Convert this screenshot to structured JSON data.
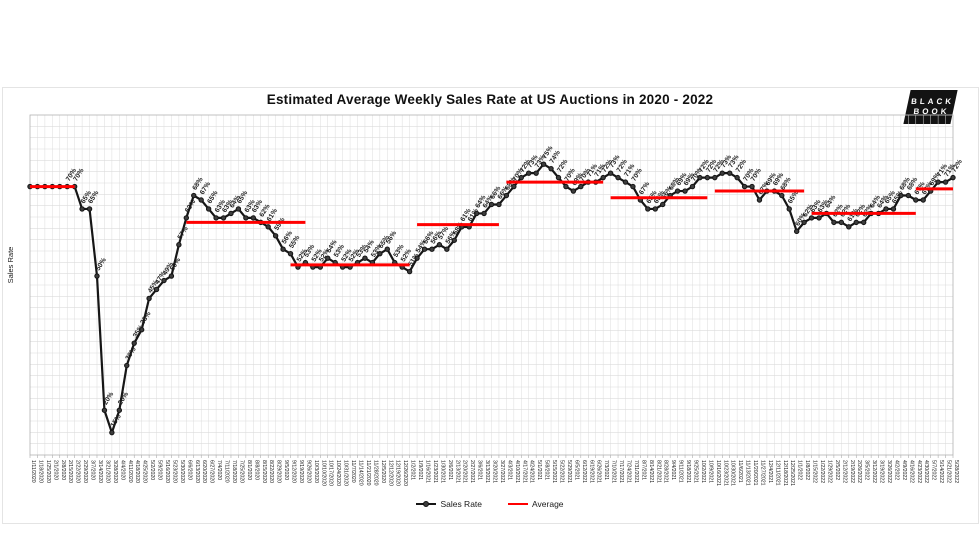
{
  "title": "Estimated Average Weekly Sales Rate at US Auctions in 2020 - 2022",
  "logo": {
    "line1": "BLACK",
    "line2": "BOOK"
  },
  "colors": {
    "series": "#161616",
    "marker_fill": "#3c3c3c",
    "average": "#ff0000",
    "grid": "#dcdcdc",
    "axis": "#b5b5b5"
  },
  "chart_data": {
    "type": "line",
    "title": "Estimated Average Weekly Sales Rate at US Auctions in 2020 - 2022",
    "xlabel": "",
    "ylabel": "Sales Rate",
    "ylim": [
      10,
      86
    ],
    "grid": true,
    "legend_position": "bottom",
    "data_label_format": "percent",
    "label_skip_indices": [
      0,
      1,
      2,
      3,
      4
    ],
    "x": [
      "1/11/2020",
      "1/18/2020",
      "1/25/2020",
      "2/1/2020",
      "2/8/2020",
      "2/15/2020",
      "2/22/2020",
      "2/29/2020",
      "3/7/2020",
      "3/14/2020",
      "3/21/2020",
      "3/28/2020",
      "4/4/2020",
      "4/11/2020",
      "4/18/2020",
      "4/25/2020",
      "5/2/2020",
      "5/9/2020",
      "5/16/2020",
      "5/23/2020",
      "5/30/2020",
      "6/6/2020",
      "6/13/2020",
      "6/20/2020",
      "6/27/2020",
      "7/4/2020",
      "7/11/2020",
      "7/18/2020",
      "7/25/2020",
      "8/1/2020",
      "8/8/2020",
      "8/15/2020",
      "8/22/2020",
      "8/29/2020",
      "9/5/2020",
      "9/12/2020",
      "9/19/2020",
      "9/26/2020",
      "10/3/2020",
      "10/10/2020",
      "10/17/2020",
      "10/24/2020",
      "10/31/2020",
      "11/7/2020",
      "11/14/2020",
      "11/21/2020",
      "11/28/2020",
      "12/5/2020",
      "12/12/2020",
      "12/19/2020",
      "12/26/2020",
      "1/2/2021",
      "1/9/2021",
      "1/16/2021",
      "1/23/2021",
      "1/30/2021",
      "2/6/2021",
      "2/13/2021",
      "2/20/2021",
      "2/27/2021",
      "3/6/2021",
      "3/13/2021",
      "3/20/2021",
      "3/27/2021",
      "4/3/2021",
      "4/10/2021",
      "4/17/2021",
      "4/24/2021",
      "5/1/2021",
      "5/8/2021",
      "5/15/2021",
      "5/22/2021",
      "5/29/2021",
      "6/5/2021",
      "6/12/2021",
      "6/19/2021",
      "6/26/2021",
      "7/3/2021",
      "7/10/2021",
      "7/17/2021",
      "7/24/2021",
      "7/31/2021",
      "8/7/2021",
      "8/14/2021",
      "8/21/2021",
      "8/28/2021",
      "9/4/2021",
      "9/11/2021",
      "9/18/2021",
      "9/25/2021",
      "10/2/2021",
      "10/9/2021",
      "10/16/2021",
      "10/23/2021",
      "10/30/2021",
      "11/6/2021",
      "11/13/2021",
      "11/20/2021",
      "11/27/2021",
      "12/4/2021",
      "12/11/2021",
      "12/18/2021",
      "12/25/2021",
      "1/1/2022",
      "1/8/2022",
      "1/15/2022",
      "1/22/2022",
      "1/29/2022",
      "2/5/2022",
      "2/12/2022",
      "2/19/2022",
      "2/26/2022",
      "3/5/2022",
      "3/12/2022",
      "3/19/2022",
      "3/26/2022",
      "4/2/2022",
      "4/9/2022",
      "4/16/2022",
      "4/23/2022",
      "4/30/2022",
      "5/7/2022",
      "5/14/2022",
      "5/21/2022",
      "5/28/2022"
    ],
    "series": [
      {
        "name": "Sales Rate",
        "unit": "%",
        "values": [
          70,
          70,
          70,
          70,
          70,
          70,
          70,
          65,
          65,
          50,
          20,
          15,
          20,
          30,
          35,
          38,
          45,
          47,
          49,
          50,
          57,
          63,
          68,
          67,
          65,
          63,
          63,
          64,
          65,
          63,
          63,
          62,
          61,
          59,
          56,
          55,
          52,
          53,
          52,
          52,
          54,
          53,
          52,
          52,
          53,
          54,
          53,
          55,
          56,
          53,
          52,
          51,
          54,
          56,
          56,
          57,
          56,
          58,
          61,
          61,
          64,
          64,
          66,
          66,
          68,
          70,
          72,
          73,
          73,
          75,
          74,
          72,
          70,
          69,
          70,
          71,
          71,
          72,
          73,
          72,
          71,
          70,
          67,
          65,
          65,
          66,
          68,
          69,
          69,
          70,
          72,
          72,
          72,
          73,
          73,
          72,
          70,
          70,
          67,
          69,
          69,
          68,
          65,
          60,
          62,
          63,
          63,
          64,
          62,
          62,
          61,
          62,
          62,
          64,
          64,
          65,
          65,
          68,
          68,
          67,
          67,
          69,
          71,
          71,
          72
        ]
      },
      {
        "name": "Average",
        "unit": "%",
        "segments": [
          {
            "start_index": 0,
            "end_index": 6,
            "value": 70
          },
          {
            "start_index": 21,
            "end_index": 37,
            "value": 62
          },
          {
            "start_index": 35,
            "end_index": 51,
            "value": 52.5
          },
          {
            "start_index": 52,
            "end_index": 63,
            "value": 61.5
          },
          {
            "start_index": 64,
            "end_index": 77,
            "value": 71
          },
          {
            "start_index": 78,
            "end_index": 91,
            "value": 67.5
          },
          {
            "start_index": 92,
            "end_index": 104,
            "value": 69
          },
          {
            "start_index": 105,
            "end_index": 119,
            "value": 64
          },
          {
            "start_index": 119,
            "end_index": 124,
            "value": 69.5
          }
        ]
      }
    ]
  }
}
